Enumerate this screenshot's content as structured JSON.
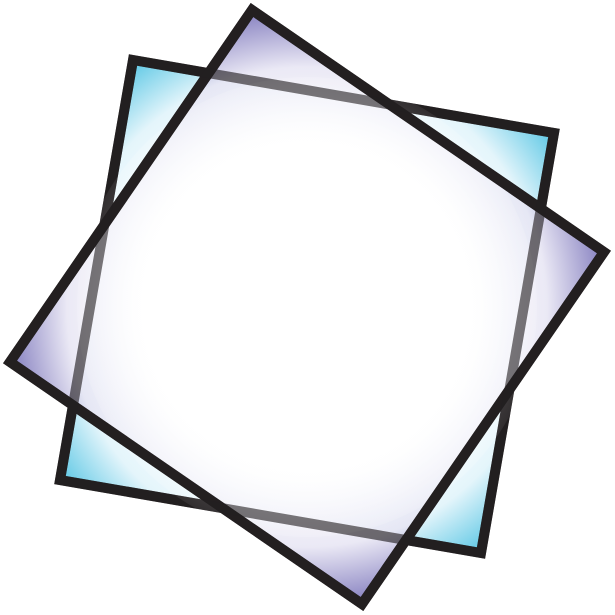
{
  "artwork": {
    "description_kind": "overlapping-rotated-squares-graphic",
    "colors": {
      "outline": "#231f20",
      "center": "#ffffff",
      "cyan_edge": "#5ec8e5",
      "violet_edge": "#6d66b3"
    },
    "shapes": [
      {
        "name": "cyan-square",
        "fill_edge_color": "#5ec8e5"
      },
      {
        "name": "violet-square",
        "fill_edge_color": "#6d66b3"
      }
    ]
  }
}
